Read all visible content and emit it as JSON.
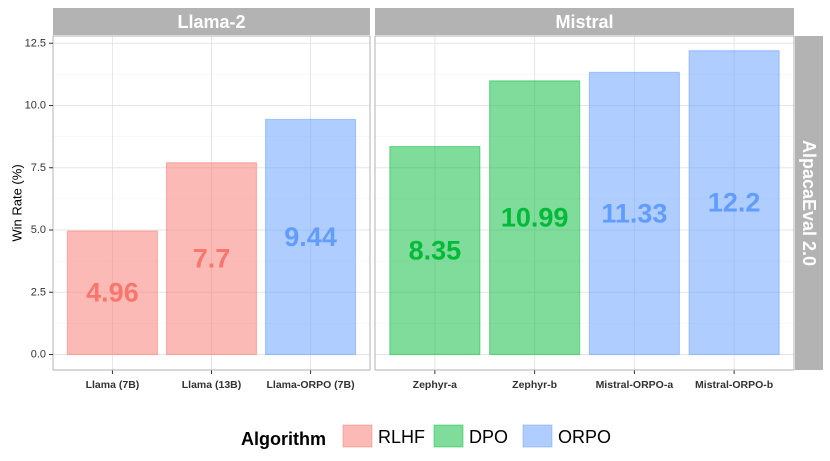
{
  "chart_data": {
    "type": "bar",
    "ylabel": "Win Rate (%)",
    "ylim": [
      0,
      12.8
    ],
    "yticks": [
      "0.0",
      "2.5",
      "5.0",
      "7.5",
      "10.0",
      "12.5"
    ],
    "row_strip": "AlpacaEval 2.0",
    "grid": true,
    "legend_position": "bottom",
    "legend": {
      "title": "Algorithm",
      "entries": [
        {
          "name": "RLHF",
          "fill": "#F8766D"
        },
        {
          "name": "DPO",
          "fill": "#00BA38"
        },
        {
          "name": "ORPO",
          "fill": "#619CFF"
        }
      ]
    },
    "panels": [
      {
        "strip": "Llama-2",
        "bars": [
          {
            "category": "Llama (7B)",
            "value": 4.96,
            "label": "4.96",
            "algorithm": "RLHF"
          },
          {
            "category": "Llama (13B)",
            "value": 7.7,
            "label": "7.7",
            "algorithm": "RLHF"
          },
          {
            "category": "Llama-ORPO (7B)",
            "value": 9.44,
            "label": "9.44",
            "algorithm": "ORPO"
          }
        ]
      },
      {
        "strip": "Mistral",
        "bars": [
          {
            "category": "Zephyr-a",
            "value": 8.35,
            "label": "8.35",
            "algorithm": "DPO"
          },
          {
            "category": "Zephyr-b",
            "value": 10.99,
            "label": "10.99",
            "algorithm": "DPO"
          },
          {
            "category": "Mistral-ORPO-a",
            "value": 11.33,
            "label": "11.33",
            "algorithm": "ORPO"
          },
          {
            "category": "Mistral-ORPO-b",
            "value": 12.2,
            "label": "12.2",
            "algorithm": "ORPO"
          }
        ]
      }
    ]
  }
}
